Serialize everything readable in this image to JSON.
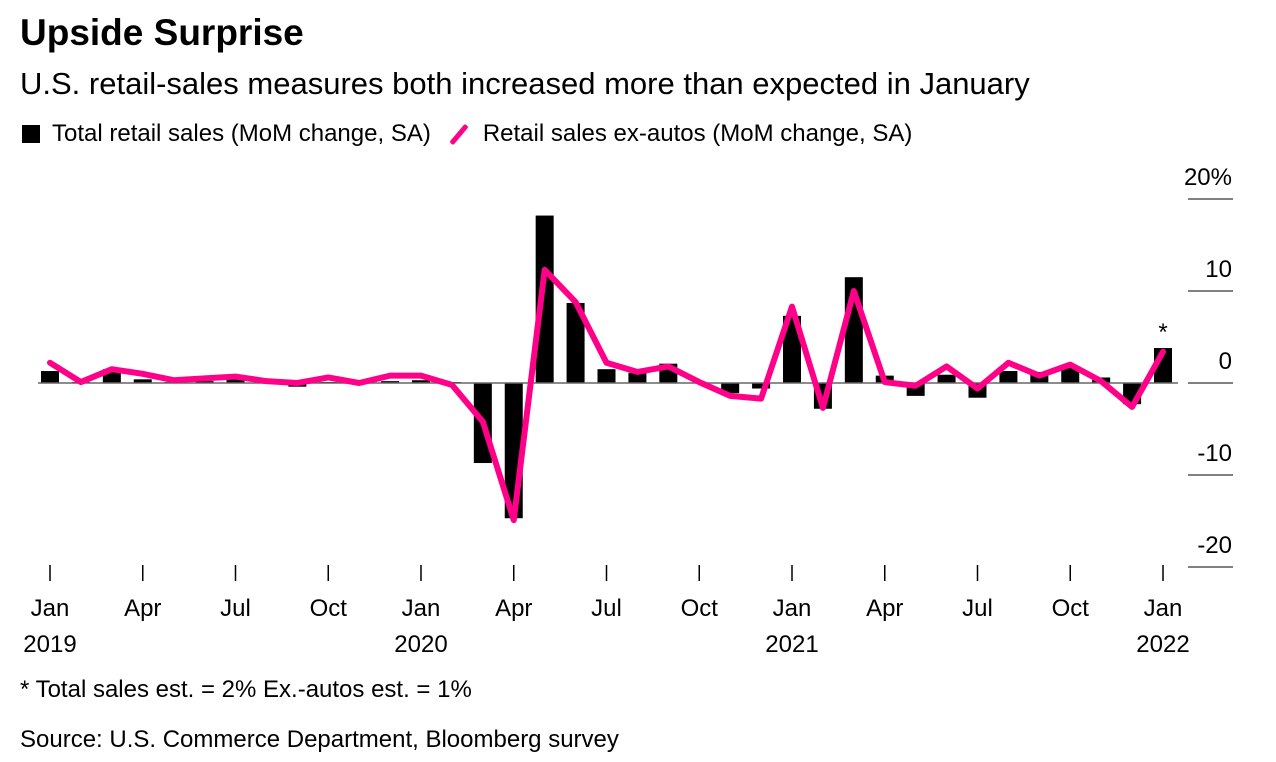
{
  "chart_data": {
    "type": "bar+line",
    "title": "Upside Surprise",
    "subtitle": "U.S. retail-sales measures both increased more than expected in January",
    "legend": [
      "Total retail sales (MoM change, SA)",
      "Retail sales ex-autos (MoM change, SA)"
    ],
    "legend_position": "top-left",
    "ylim": [
      -20,
      20
    ],
    "yticks": [
      {
        "v": 20,
        "label": "20%"
      },
      {
        "v": 10,
        "label": "10"
      },
      {
        "v": 0,
        "label": "0"
      },
      {
        "v": -10,
        "label": "-10"
      },
      {
        "v": -20,
        "label": "-20"
      }
    ],
    "xticks": [
      {
        "i": 0,
        "label": "Jan",
        "year": "2019"
      },
      {
        "i": 3,
        "label": "Apr"
      },
      {
        "i": 6,
        "label": "Jul"
      },
      {
        "i": 9,
        "label": "Oct"
      },
      {
        "i": 12,
        "label": "Jan",
        "year": "2020"
      },
      {
        "i": 15,
        "label": "Apr"
      },
      {
        "i": 18,
        "label": "Jul"
      },
      {
        "i": 21,
        "label": "Oct"
      },
      {
        "i": 24,
        "label": "Jan",
        "year": "2021"
      },
      {
        "i": 27,
        "label": "Apr"
      },
      {
        "i": 30,
        "label": "Jul"
      },
      {
        "i": 33,
        "label": "Oct"
      },
      {
        "i": 36,
        "label": "Jan",
        "year": "2022"
      }
    ],
    "x_start": "2019-01",
    "x_end": "2022-01",
    "series": [
      {
        "name": "Total retail sales (MoM change, SA)",
        "type": "bar",
        "color": "#000000",
        "values": [
          1.3,
          0.1,
          1.5,
          0.4,
          0.1,
          0.2,
          0.4,
          0.2,
          -0.4,
          0.1,
          0.2,
          0.2,
          0.3,
          0.1,
          -8.7,
          -14.7,
          18.2,
          8.7,
          1.5,
          1.1,
          2.1,
          0,
          -1.1,
          -0.6,
          7.3,
          -2.8,
          11.5,
          0.8,
          -1.4,
          0.9,
          -1.6,
          1.3,
          1.2,
          1.8,
          0.6,
          -2.3,
          3.8
        ]
      },
      {
        "name": "Retail sales ex-autos (MoM change, SA)",
        "type": "line",
        "color": "#ff0088",
        "values": [
          2.2,
          0.1,
          1.5,
          1.0,
          0.3,
          0.5,
          0.7,
          0.2,
          0,
          0.6,
          0,
          0.8,
          0.8,
          -0.2,
          -4.2,
          -14.9,
          12.3,
          8.8,
          2.2,
          1.2,
          1.8,
          0.1,
          -1.4,
          -1.7,
          8.3,
          -2.7,
          10.0,
          0.1,
          -0.3,
          1.8,
          -0.6,
          2.2,
          0.8,
          2.0,
          0.2,
          -2.6,
          3.4
        ]
      }
    ],
    "annotation": {
      "i": 36,
      "text": "*"
    },
    "note": "* Total sales est. = 2% Ex.-autos est. = 1%",
    "source": "Source: U.S. Commerce Department, Bloomberg survey"
  }
}
